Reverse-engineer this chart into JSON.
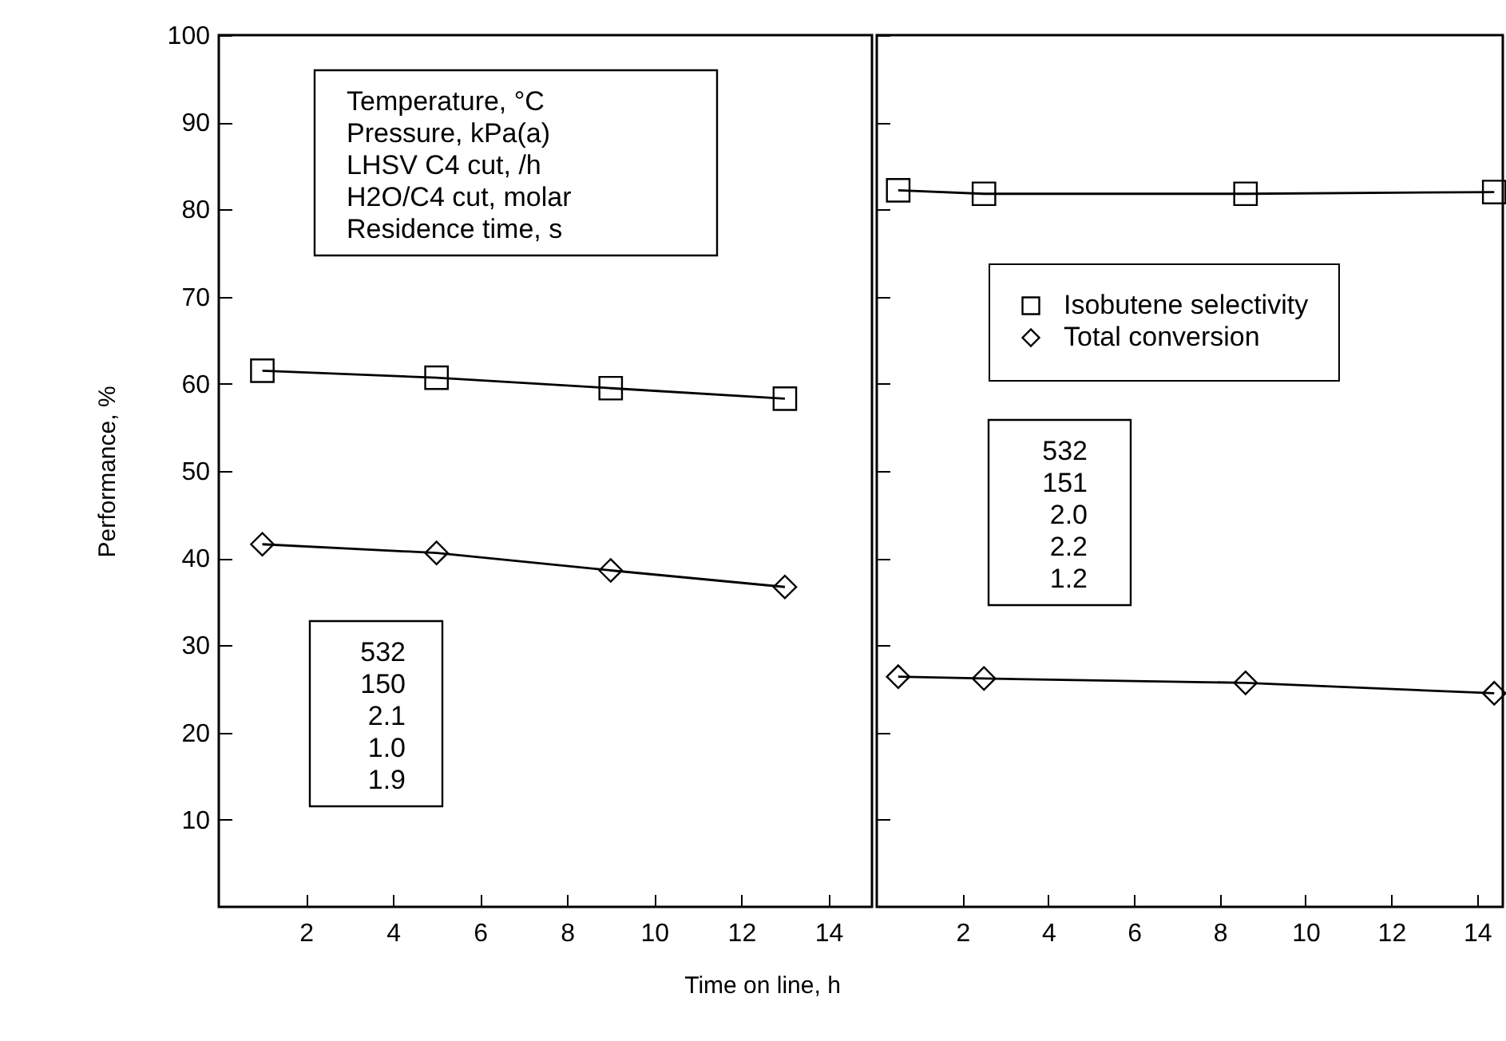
{
  "chart_data": [
    {
      "type": "line",
      "ylabel": "Performance, %",
      "xlabel": "Time on line, h",
      "xlim": [
        0,
        15
      ],
      "xticks": [
        2,
        4,
        6,
        8,
        10,
        12,
        14
      ],
      "ylim": [
        0,
        100
      ],
      "yticks": [
        10,
        20,
        30,
        40,
        50,
        60,
        70,
        80,
        90,
        100
      ],
      "grid": false,
      "line_style": "solid",
      "annotations": [
        "Temperature, °C\nPressure, kPa(a)\nLHSV C4 cut, /h\nH2O/C4 cut, molar\nResidence time, s",
        "532\n150\n2.1\n1.0\n1.9"
      ],
      "series": [
        {
          "color": "#000000",
          "marker": "square",
          "x": [
            1,
            5,
            9,
            13
          ],
          "values": [
            61.5,
            60.7,
            59.5,
            58.3
          ]
        },
        {
          "color": "#000000",
          "marker": "diamond",
          "x": [
            1,
            5,
            9,
            13
          ],
          "values": [
            41.6,
            40.6,
            38.6,
            36.7
          ]
        }
      ]
    },
    {
      "type": "line",
      "xlim": [
        0,
        14.6
      ],
      "xticks": [
        2,
        4,
        6,
        8,
        10,
        12,
        14
      ],
      "ylim": [
        0,
        100
      ],
      "yticks": [
        10,
        20,
        30,
        40,
        50,
        60,
        70,
        80,
        90,
        100
      ],
      "tick_labels": "x",
      "grid": false,
      "legend": "top",
      "line_style": "solid",
      "annotations": [
        "532\n151\n2.0\n2.2\n1.2"
      ],
      "series": [
        {
          "name": "Isobutene selectivity",
          "color": "#000000",
          "marker": "square",
          "x": [
            0.5,
            2.5,
            8.6,
            14.4
          ],
          "values": [
            82.2,
            81.8,
            81.8,
            82.0
          ]
        },
        {
          "name": "Total conversion",
          "color": "#000000",
          "marker": "diamond",
          "x": [
            0.5,
            2.5,
            8.6,
            14.4
          ],
          "values": [
            26.4,
            26.2,
            25.7,
            24.5
          ]
        }
      ]
    }
  ]
}
